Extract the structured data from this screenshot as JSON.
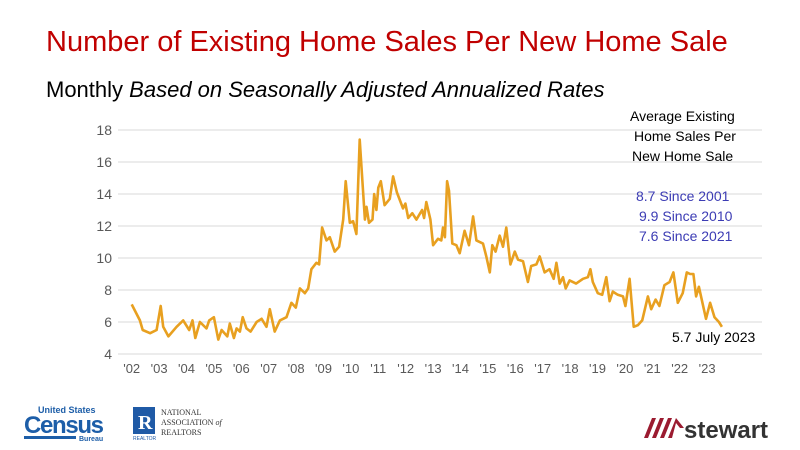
{
  "title": "Number of Existing Home Sales Per New Home Sale",
  "subtitle": {
    "prefix": "Monthly",
    "italic": "Based on Seasonally Adjusted Annualized Rates"
  },
  "annotations": {
    "heading": [
      "Average Existing",
      "Home Sales Per",
      "New Home Sale"
    ],
    "averages": [
      "8.7 Since 2001",
      "9.9 Since 2010",
      "7.6 Since 2021"
    ],
    "latest": "5.7 July 2023",
    "averages_color": "#3c3cb4"
  },
  "logos": {
    "census": {
      "line1": "United States",
      "line2": "Census",
      "line3": "Bureau"
    },
    "nar": {
      "line1": "NATIONAL",
      "line2": "ASSOCIATION of",
      "line3": "REALTORS"
    },
    "stewart": "stewart"
  },
  "chart_data": {
    "type": "line",
    "title": "Number of Existing Home Sales Per New Home Sale",
    "xlabel": "",
    "ylabel": "",
    "ylim": [
      4,
      18
    ],
    "yticks": [
      4,
      6,
      8,
      10,
      12,
      14,
      16,
      18
    ],
    "xlim": [
      2002,
      2023.6
    ],
    "xticks": [
      2002,
      2003,
      2004,
      2005,
      2006,
      2007,
      2008,
      2009,
      2010,
      2011,
      2012,
      2013,
      2014,
      2015,
      2016,
      2017,
      2018,
      2019,
      2020,
      2021,
      2022,
      2023
    ],
    "xtick_labels": [
      "'02",
      "'03",
      "'04",
      "'05",
      "'06",
      "'07",
      "'08",
      "'09",
      "'10",
      "'11",
      "'12",
      "'13",
      "'14",
      "'15",
      "'16",
      "'17",
      "'18",
      "'19",
      "'20",
      "'21",
      "'22",
      "'23"
    ],
    "grid": true,
    "line_color": "#e8a020",
    "series": [
      {
        "x": [
          2002.0,
          2002.3,
          2002.4,
          2002.67,
          2002.91,
          2003.06,
          2003.15,
          2003.34,
          2003.64,
          2003.88,
          2004.1,
          2004.22,
          2004.32,
          2004.49,
          2004.73,
          2004.83,
          2005.0,
          2005.16,
          2005.28,
          2005.49,
          2005.58,
          2005.73,
          2005.83,
          2005.95,
          2006.05,
          2006.19,
          2006.34,
          2006.56,
          2006.74,
          2006.92,
          2007.04,
          2007.22,
          2007.41,
          2007.65,
          2007.83,
          2007.99,
          2008.14,
          2008.32,
          2008.44,
          2008.56,
          2008.74,
          2008.84,
          2008.95,
          2009.11,
          2009.23,
          2009.41,
          2009.57,
          2009.72,
          2009.81,
          2009.96,
          2010.08,
          2010.2,
          2010.32,
          2010.51,
          2010.57,
          2010.66,
          2010.79,
          2010.85,
          2010.93,
          2011.0,
          2011.09,
          2011.23,
          2011.42,
          2011.54,
          2011.68,
          2011.9,
          2011.99,
          2012.09,
          2012.24,
          2012.39,
          2012.6,
          2012.67,
          2012.75,
          2012.9,
          2013.0,
          2013.18,
          2013.3,
          2013.36,
          2013.43,
          2013.51,
          2013.58,
          2013.7,
          2013.85,
          2013.97,
          2014.15,
          2014.31,
          2014.46,
          2014.58,
          2014.82,
          2014.94,
          2015.07,
          2015.16,
          2015.28,
          2015.43,
          2015.55,
          2015.67,
          2015.82,
          2015.98,
          2016.1,
          2016.28,
          2016.46,
          2016.58,
          2016.77,
          2016.89,
          2017.07,
          2017.25,
          2017.4,
          2017.5,
          2017.62,
          2017.74,
          2017.84,
          2017.98,
          2018.22,
          2018.47,
          2018.65,
          2018.74,
          2018.83,
          2019.01,
          2019.17,
          2019.32,
          2019.44,
          2019.56,
          2019.74,
          2019.93,
          2020.02,
          2020.17,
          2020.32,
          2020.47,
          2020.63,
          2020.84,
          2020.96,
          2021.12,
          2021.26,
          2021.44,
          2021.63,
          2021.77,
          2021.93,
          2022.11,
          2022.26,
          2022.38,
          2022.5,
          2022.6,
          2022.7,
          2022.96,
          2023.11,
          2023.27,
          2023.43,
          2023.54
        ],
        "y": [
          7.1,
          6.1,
          5.5,
          5.3,
          5.5,
          7.0,
          5.7,
          5.1,
          5.7,
          6.1,
          5.5,
          6.1,
          5.0,
          6.0,
          5.6,
          6.1,
          6.3,
          4.9,
          5.5,
          5.1,
          5.9,
          5.0,
          5.6,
          5.4,
          6.3,
          5.6,
          5.4,
          6.0,
          6.2,
          5.7,
          6.8,
          5.4,
          6.1,
          6.3,
          7.2,
          6.9,
          8.1,
          7.8,
          8.1,
          9.3,
          9.7,
          9.6,
          11.9,
          11.1,
          11.3,
          10.4,
          10.7,
          12.4,
          14.8,
          12.2,
          12.3,
          11.5,
          17.4,
          12.4,
          13.2,
          12.2,
          12.4,
          14.0,
          13.0,
          14.4,
          14.8,
          13.3,
          13.7,
          15.1,
          14.1,
          13.1,
          13.4,
          12.5,
          12.8,
          12.4,
          13.0,
          12.5,
          13.5,
          12.4,
          10.8,
          11.2,
          11.1,
          11.9,
          11.3,
          14.8,
          14.2,
          10.9,
          10.8,
          10.3,
          11.7,
          10.8,
          12.6,
          11.1,
          10.9,
          10.1,
          9.1,
          10.8,
          10.4,
          11.4,
          10.7,
          11.9,
          9.6,
          10.4,
          9.9,
          9.8,
          8.5,
          9.5,
          9.6,
          10.1,
          9.1,
          9.3,
          8.7,
          9.7,
          8.4,
          8.8,
          8.1,
          8.6,
          8.4,
          8.7,
          8.8,
          9.3,
          8.5,
          7.8,
          7.7,
          8.8,
          7.3,
          7.9,
          7.7,
          7.6,
          7.0,
          8.7,
          5.7,
          5.8,
          6.1,
          7.6,
          6.8,
          7.4,
          7.0,
          8.3,
          8.5,
          9.1,
          7.2,
          7.8,
          9.1,
          9.0,
          9.0,
          7.6,
          8.2,
          6.2,
          7.2,
          6.3,
          6.0,
          5.7
        ]
      }
    ]
  }
}
